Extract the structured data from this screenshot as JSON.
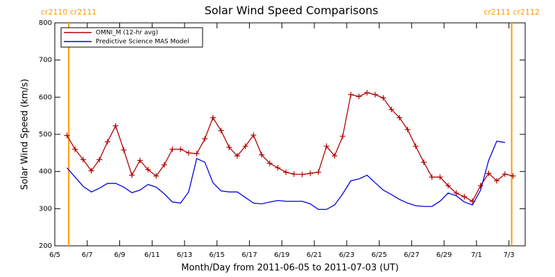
{
  "chart_data": {
    "type": "line",
    "title": "Solar Wind Speed Comparisons",
    "xlabel": "Month/Day from 2011-06-05 to 2011-07-03 (UT)",
    "ylabel": "Solar Wind Speed (km/s)",
    "legend": "upper left",
    "x": [
      "2011-06-05T18:00",
      "2011-06-06T06:00",
      "2011-06-06T18:00",
      "2011-06-07T06:00",
      "2011-06-07T18:00",
      "2011-06-08T06:00",
      "2011-06-08T18:00",
      "2011-06-09T06:00",
      "2011-06-09T18:00",
      "2011-06-10T06:00",
      "2011-06-10T18:00",
      "2011-06-11T06:00",
      "2011-06-11T18:00",
      "2011-06-12T06:00",
      "2011-06-12T18:00",
      "2011-06-13T06:00",
      "2011-06-13T18:00",
      "2011-06-14T06:00",
      "2011-06-14T18:00",
      "2011-06-15T06:00",
      "2011-06-15T18:00",
      "2011-06-16T06:00",
      "2011-06-16T18:00",
      "2011-06-17T06:00",
      "2011-06-17T18:00",
      "2011-06-18T06:00",
      "2011-06-18T18:00",
      "2011-06-19T06:00",
      "2011-06-19T18:00",
      "2011-06-20T06:00",
      "2011-06-20T18:00",
      "2011-06-21T06:00",
      "2011-06-21T18:00",
      "2011-06-22T06:00",
      "2011-06-22T18:00",
      "2011-06-23T06:00",
      "2011-06-23T18:00",
      "2011-06-24T06:00",
      "2011-06-24T18:00",
      "2011-06-25T06:00",
      "2011-06-25T18:00",
      "2011-06-26T06:00",
      "2011-06-26T18:00",
      "2011-06-27T06:00",
      "2011-06-27T18:00",
      "2011-06-28T06:00",
      "2011-06-28T18:00",
      "2011-06-29T06:00",
      "2011-06-29T18:00",
      "2011-06-30T06:00",
      "2011-06-30T18:00",
      "2011-07-01T06:00",
      "2011-07-01T18:00",
      "2011-07-02T06:00",
      "2011-07-02T18:00",
      "2011-07-03T06:00"
    ],
    "series": [
      {
        "name": "OMNI_M (12-hr avg)",
        "color": "#b00000",
        "marker": "plus",
        "values": [
          497,
          460,
          432,
          402,
          432,
          480,
          523,
          458,
          390,
          430,
          405,
          388,
          418,
          460,
          460,
          450,
          448,
          488,
          545,
          510,
          465,
          442,
          468,
          498,
          445,
          422,
          410,
          398,
          393,
          392,
          395,
          398,
          468,
          442,
          495,
          607,
          602,
          612,
          607,
          598,
          567,
          545,
          513,
          468,
          425,
          385,
          385,
          362,
          342,
          332,
          320,
          362,
          395,
          375,
          393,
          388
        ]
      },
      {
        "name": "Predictive Science MAS Model",
        "color": "#0000e0",
        "values": [
          410,
          385,
          360,
          345,
          355,
          368,
          368,
          358,
          343,
          350,
          365,
          358,
          340,
          318,
          315,
          345,
          435,
          425,
          370,
          348,
          345,
          345,
          330,
          315,
          313,
          318,
          322,
          320,
          320,
          320,
          313,
          298,
          298,
          310,
          340,
          375,
          380,
          390,
          370,
          350,
          338,
          325,
          315,
          308,
          306,
          306,
          320,
          342,
          335,
          318,
          310,
          350,
          430,
          482,
          478,
          null
        ]
      }
    ],
    "xlim": [
      "2011-06-05",
      "2011-07-04"
    ],
    "xticks": [
      {
        "value": "2011-06-05",
        "label": "6/5"
      },
      {
        "value": "2011-06-07",
        "label": "6/7"
      },
      {
        "value": "2011-06-09",
        "label": "6/9"
      },
      {
        "value": "2011-06-11",
        "label": "6/11"
      },
      {
        "value": "2011-06-13",
        "label": "6/13"
      },
      {
        "value": "2011-06-15",
        "label": "6/15"
      },
      {
        "value": "2011-06-17",
        "label": "6/17"
      },
      {
        "value": "2011-06-19",
        "label": "6/19"
      },
      {
        "value": "2011-06-21",
        "label": "6/21"
      },
      {
        "value": "2011-06-23",
        "label": "6/23"
      },
      {
        "value": "2011-06-25",
        "label": "6/25"
      },
      {
        "value": "2011-06-27",
        "label": "6/27"
      },
      {
        "value": "2011-06-29",
        "label": "6/29"
      },
      {
        "value": "2011-07-01",
        "label": "7/1"
      },
      {
        "value": "2011-07-03",
        "label": "7/3"
      }
    ],
    "ylim": [
      200,
      800
    ],
    "yticks": [
      200,
      300,
      400,
      500,
      600,
      700,
      800
    ],
    "annotations": [
      {
        "x": "2011-06-05T20:40",
        "label": "cr2110 cr2111",
        "color": "#ff9900"
      },
      {
        "x": "2011-07-03T04:00",
        "label": "cr2111 cr2112",
        "color": "#ff9900"
      }
    ]
  }
}
